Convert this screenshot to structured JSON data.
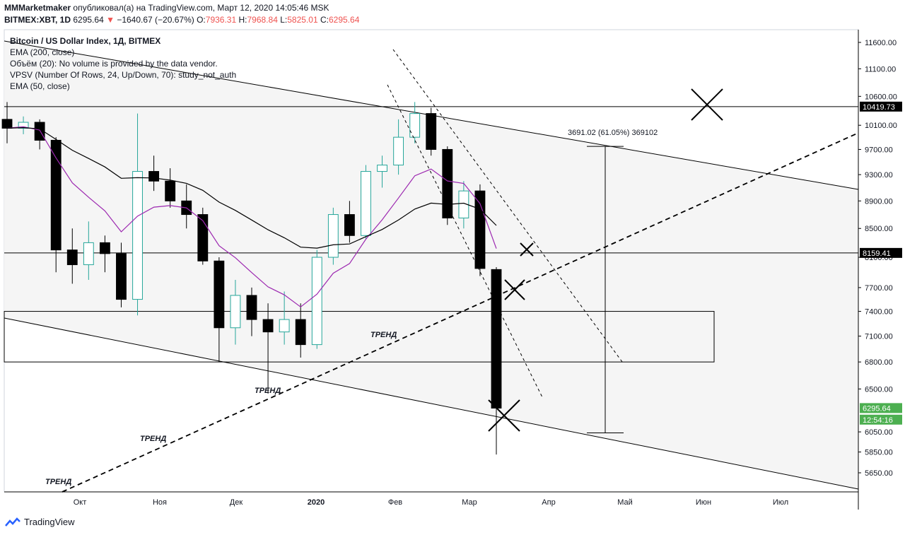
{
  "header": {
    "author": "MMMarketmaker",
    "published_text": "опубликовал(а) на TradingView.com, Март 12, 2020 14:05:46 MSK",
    "symbol": "BITMEX:XBT, 1D",
    "last": "6295.64",
    "change": "−1640.67 (−20.67%)",
    "o_label": "O:",
    "o_value": "7936.31",
    "h_label": "H:",
    "h_value": "7968.84",
    "l_label": "L:",
    "l_value": "5825.01",
    "c_label": "C:",
    "c_value": "6295.64"
  },
  "legend": {
    "title": "Bitcoin / US Dollar Index, 1Д, BITMEX",
    "ema200": "EMA (200, close)",
    "volume": "Объём (20): No volume is provided by the data vendor.",
    "vpsv": "VPSV (Number Of Rows, 24, Up/Down, 70): study_not_auth",
    "ema50": "EMA (50, close)"
  },
  "footer": {
    "brand": "TradingView"
  },
  "colors": {
    "up": "#26a69a",
    "down": "#000000",
    "ema50": "#9c27b0",
    "ema200": "#000000",
    "channel_fill": "#f5f5f5"
  },
  "chart_data": {
    "type": "candlestick",
    "y_scale": "log",
    "price_ticks": [
      "11600.00",
      "11100.00",
      "10600.00",
      "10100.00",
      "9700.00",
      "9300.00",
      "8900.00",
      "8500.00",
      "8100.00",
      "7700.00",
      "7400.00",
      "7100.00",
      "6800.00",
      "6500.00",
      "6050.00",
      "5850.00",
      "5650.00"
    ],
    "time_ticks": [
      "Окт",
      "Ноя",
      "Дек",
      "2020",
      "Фев",
      "Мар",
      "Апр",
      "Май",
      "Июн",
      "Июл"
    ],
    "price_labels": [
      {
        "text": "10419.73",
        "value": 10419.73,
        "style": "black"
      },
      {
        "text": "8159.41",
        "value": 8159.41,
        "style": "black"
      },
      {
        "text": "6295.64",
        "value": 6295.64,
        "style": "green"
      },
      {
        "text": "12:54:16",
        "value": 6175,
        "style": "green"
      }
    ],
    "horizontal_levels": [
      10419.73,
      8159.41
    ],
    "range_box": {
      "top": 7400,
      "bottom": 6800
    },
    "measure": {
      "top_text": "3691.02 (61.05%) 369102",
      "from": 9750,
      "to": 6040
    },
    "annotations": [
      "ТРЕНД",
      "ТРЕНД",
      "ТРЕНД",
      "ТРЕНД"
    ],
    "ohlc_weekly": [
      {
        "o": 10200,
        "h": 10500,
        "l": 9800,
        "c": 10050
      },
      {
        "o": 10050,
        "h": 10250,
        "l": 9950,
        "c": 10150
      },
      {
        "o": 10150,
        "h": 10200,
        "l": 9700,
        "c": 9850
      },
      {
        "o": 9850,
        "h": 9900,
        "l": 7900,
        "c": 8200
      },
      {
        "o": 8200,
        "h": 8500,
        "l": 7750,
        "c": 8000
      },
      {
        "o": 8000,
        "h": 8600,
        "l": 7800,
        "c": 8300
      },
      {
        "o": 8300,
        "h": 8400,
        "l": 7900,
        "c": 8150
      },
      {
        "o": 8150,
        "h": 8300,
        "l": 7450,
        "c": 7550
      },
      {
        "o": 7550,
        "h": 10300,
        "l": 7350,
        "c": 9350
      },
      {
        "o": 9350,
        "h": 9600,
        "l": 9050,
        "c": 9200
      },
      {
        "o": 9200,
        "h": 9400,
        "l": 8800,
        "c": 8900
      },
      {
        "o": 8900,
        "h": 9150,
        "l": 8500,
        "c": 8700
      },
      {
        "o": 8700,
        "h": 8800,
        "l": 8000,
        "c": 8050
      },
      {
        "o": 8050,
        "h": 8100,
        "l": 6800,
        "c": 7200
      },
      {
        "o": 7200,
        "h": 7800,
        "l": 7000,
        "c": 7600
      },
      {
        "o": 7600,
        "h": 7700,
        "l": 7100,
        "c": 7300
      },
      {
        "o": 7300,
        "h": 7500,
        "l": 6450,
        "c": 7150
      },
      {
        "o": 7150,
        "h": 7650,
        "l": 7000,
        "c": 7300
      },
      {
        "o": 7300,
        "h": 7500,
        "l": 6850,
        "c": 7000
      },
      {
        "o": 7000,
        "h": 8200,
        "l": 6950,
        "c": 8100
      },
      {
        "o": 8100,
        "h": 8800,
        "l": 8000,
        "c": 8700
      },
      {
        "o": 8700,
        "h": 8900,
        "l": 8300,
        "c": 8400
      },
      {
        "o": 8400,
        "h": 9450,
        "l": 8350,
        "c": 9350
      },
      {
        "o": 9350,
        "h": 9600,
        "l": 9100,
        "c": 9450
      },
      {
        "o": 9450,
        "h": 10200,
        "l": 9300,
        "c": 9900
      },
      {
        "o": 9900,
        "h": 10500,
        "l": 9800,
        "c": 10300
      },
      {
        "o": 10300,
        "h": 10400,
        "l": 9600,
        "c": 9700
      },
      {
        "o": 9700,
        "h": 9750,
        "l": 8550,
        "c": 8650
      },
      {
        "o": 8650,
        "h": 9200,
        "l": 8500,
        "c": 9050
      },
      {
        "o": 9050,
        "h": 9150,
        "l": 7850,
        "c": 7950
      },
      {
        "o": 7936,
        "h": 7968,
        "l": 5825,
        "c": 6295
      }
    ]
  }
}
